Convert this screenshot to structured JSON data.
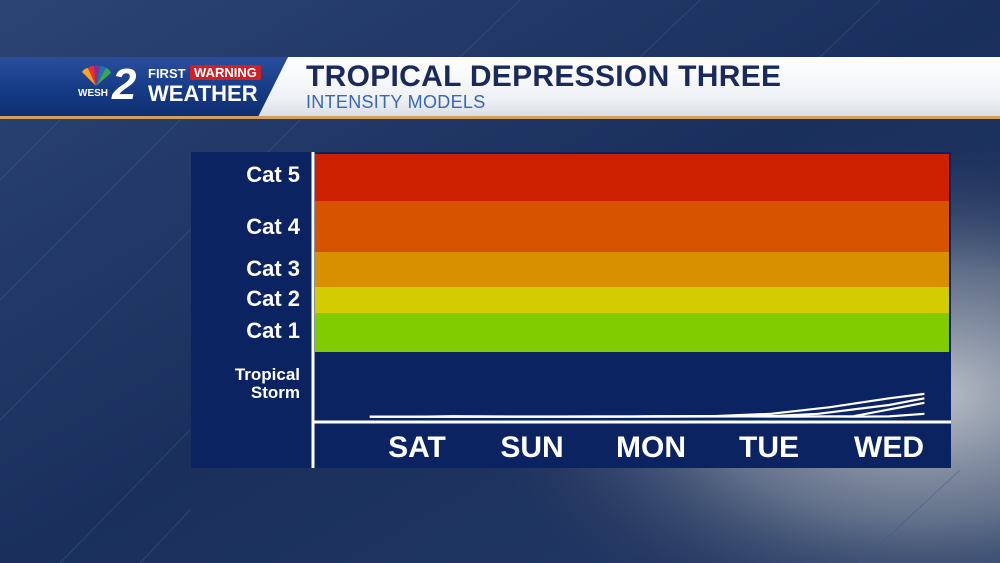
{
  "header": {
    "title": "TROPICAL DEPRESSION THREE",
    "subtitle": "INTENSITY MODELS"
  },
  "logo": {
    "digit": "2",
    "station": "WESH",
    "first": "FIRST",
    "warning": "WARNING",
    "weather": "WEATHER"
  },
  "colors": {
    "cat5": "#cc2000",
    "cat4": "#d65400",
    "cat3": "#d89000",
    "cat2": "#d2cc00",
    "cat1": "#80cc00",
    "tropical_storm": "#0b2461"
  },
  "chart_data": {
    "type": "line",
    "categories": [
      "SAT",
      "SUN",
      "MON",
      "TUE",
      "WED"
    ],
    "y_bands": [
      {
        "label": "Cat 5"
      },
      {
        "label": "Cat 4"
      },
      {
        "label": "Cat 3"
      },
      {
        "label": "Cat 2"
      },
      {
        "label": "Cat 1"
      },
      {
        "label": "Tropical Storm"
      }
    ],
    "ylabel": "",
    "ylim_kt": [
      0,
      160
    ],
    "band_ranges_kt": [
      [
        137,
        160
      ],
      [
        113,
        136
      ],
      [
        96,
        112
      ],
      [
        83,
        95
      ],
      [
        64,
        82
      ],
      [
        34,
        63
      ]
    ],
    "x_range": [
      -0.5,
      4.3
    ],
    "series": [
      {
        "x": [
          -0.4,
          0,
          0.3,
          0.8,
          1.3,
          1.8,
          2.3,
          2.8,
          3.2,
          3.7,
          4.3
        ],
        "values": [
          30,
          30,
          33,
          31,
          31,
          30,
          31,
          32,
          30,
          33,
          40
        ]
      },
      {
        "x": [
          -0.4,
          0,
          0.5,
          1.0,
          1.5,
          2.0,
          2.5,
          3.0,
          3.5,
          4.0,
          4.3
        ],
        "values": [
          30,
          30,
          30,
          30,
          31,
          32,
          33,
          35,
          38,
          42,
          44
        ]
      },
      {
        "x": [
          -0.4,
          0,
          0.5,
          1.0,
          1.5,
          2.0,
          2.5,
          3.0,
          3.4,
          4.0,
          4.3
        ],
        "values": [
          30,
          30,
          30,
          30,
          30,
          31,
          32,
          33,
          35,
          39,
          42
        ]
      },
      {
        "x": [
          0,
          0.5,
          1.0,
          1.5,
          2.0,
          2.5,
          3.0,
          3.3,
          3.7,
          4.0,
          4.3
        ],
        "values": [
          30,
          30,
          30,
          31,
          32,
          33,
          34,
          32,
          30,
          32,
          35
        ]
      }
    ]
  }
}
